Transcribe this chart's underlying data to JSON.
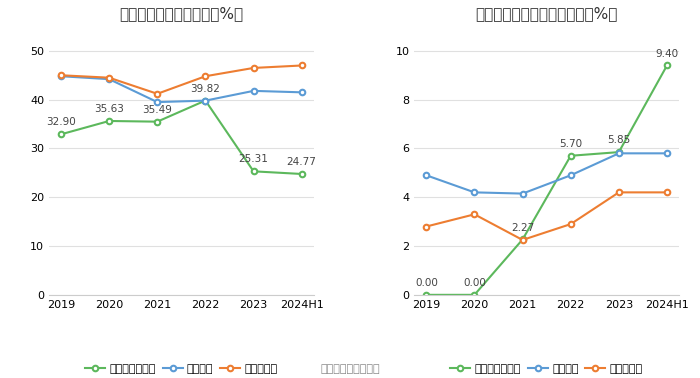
{
  "left_chart": {
    "title": "近年来资产负债率情况（%）",
    "xticklabels": [
      "2019",
      "2020",
      "2021",
      "2022",
      "2023",
      "2024H1"
    ],
    "ylim": [
      0,
      55
    ],
    "yticks": [
      0,
      10,
      20,
      30,
      40,
      50
    ],
    "series": [
      {
        "name": "公司资产负债率",
        "values": [
          32.9,
          35.63,
          35.49,
          39.82,
          25.31,
          24.77
        ],
        "color": "#5cb85c",
        "marker": "o"
      },
      {
        "name": "行业均值",
        "values": [
          44.8,
          44.2,
          39.5,
          39.8,
          41.8,
          41.5
        ],
        "color": "#5b9bd5",
        "marker": "o"
      },
      {
        "name": "行业中位数",
        "values": [
          45.0,
          44.5,
          41.2,
          44.8,
          46.5,
          47.0
        ],
        "color": "#ed7d31",
        "marker": "o"
      }
    ],
    "annotate_indices": [
      0,
      1,
      2,
      3,
      4,
      5
    ]
  },
  "right_chart": {
    "title": "近年来有息资产负债率情况（%）",
    "xticklabels": [
      "2019",
      "2020",
      "2021",
      "2022",
      "2023",
      "2024H1"
    ],
    "ylim": [
      0,
      11
    ],
    "yticks": [
      0,
      2,
      4,
      6,
      8,
      10
    ],
    "series": [
      {
        "name": "有息资产负债率",
        "values": [
          0.0,
          0.0,
          2.27,
          5.7,
          5.85,
          9.4
        ],
        "color": "#5cb85c",
        "marker": "o"
      },
      {
        "name": "行业均值",
        "values": [
          4.9,
          4.2,
          4.15,
          4.9,
          5.8,
          5.8
        ],
        "color": "#5b9bd5",
        "marker": "o"
      },
      {
        "name": "行业中位数",
        "values": [
          2.8,
          3.3,
          2.25,
          2.9,
          4.2,
          4.2
        ],
        "color": "#ed7d31",
        "marker": "o"
      }
    ],
    "annotate_indices": [
      0,
      1,
      2,
      3,
      4,
      5
    ]
  },
  "footer": "数据来源：恒生聚源",
  "background_color": "#ffffff",
  "grid_color": "#e0e0e0",
  "tick_fontsize": 8,
  "title_fontsize": 11,
  "annotation_fontsize": 7.5,
  "legend_fontsize": 8
}
